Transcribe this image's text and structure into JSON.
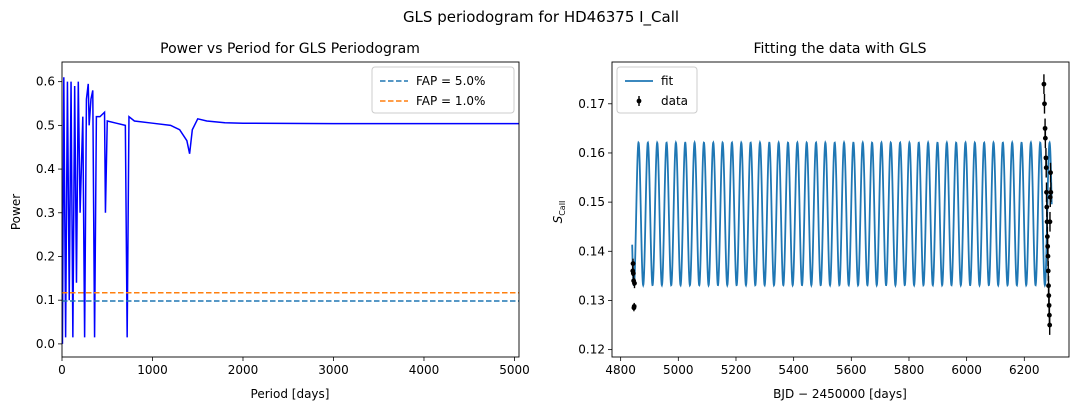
{
  "figure": {
    "suptitle": "GLS periodogram for HD46375 I_Call"
  },
  "chart_data": [
    {
      "type": "line",
      "title": "Power vs Period for GLS Periodogram",
      "xlabel": "Period [days]",
      "ylabel": "Power",
      "xlim": [
        0,
        5050
      ],
      "ylim": [
        -0.03,
        0.645
      ],
      "xticks": [
        0,
        1000,
        2000,
        3000,
        4000,
        5000
      ],
      "yticks": [
        0.0,
        0.1,
        0.2,
        0.3,
        0.4,
        0.5,
        0.6
      ],
      "xtick_labels": [
        "0",
        "1000",
        "2000",
        "3000",
        "4000",
        "5000"
      ],
      "ytick_labels": [
        "0.0",
        "0.1",
        "0.2",
        "0.3",
        "0.4",
        "0.5",
        "0.6"
      ],
      "grid": false,
      "legend_position": "top-right",
      "series": [
        {
          "name": "",
          "kind": "periodogram",
          "color": "#0000ff",
          "x": [
            5,
            20,
            40,
            60,
            80,
            100,
            120,
            140,
            160,
            180,
            200,
            230,
            250,
            270,
            290,
            300,
            320,
            340,
            360,
            380,
            420,
            470,
            480,
            500,
            600,
            700,
            720,
            740,
            800,
            1000,
            1200,
            1300,
            1380,
            1410,
            1440,
            1500,
            1600,
            1800,
            2000,
            3000,
            4000,
            5050
          ],
          "y": [
            0.0,
            0.61,
            0.015,
            0.6,
            0.1,
            0.6,
            0.015,
            0.59,
            0.14,
            0.6,
            0.3,
            0.52,
            0.015,
            0.56,
            0.595,
            0.5,
            0.56,
            0.58,
            0.015,
            0.52,
            0.52,
            0.53,
            0.3,
            0.51,
            0.505,
            0.5,
            0.015,
            0.52,
            0.51,
            0.505,
            0.5,
            0.49,
            0.465,
            0.435,
            0.49,
            0.515,
            0.51,
            0.506,
            0.505,
            0.504,
            0.504,
            0.504
          ]
        },
        {
          "name": "FAP =  5.0%",
          "kind": "hline",
          "value": 0.098,
          "color": "#1f77b4",
          "dash": true
        },
        {
          "name": "FAP =  1.0%",
          "kind": "hline",
          "value": 0.117,
          "color": "#ff7f0e",
          "dash": true
        }
      ]
    },
    {
      "type": "line",
      "title": "Fitting the data with GLS",
      "xlabel": "BJD − 2450000 [days]",
      "ylabel_main": "S",
      "ylabel_sub": "CaII",
      "xlim": [
        4770,
        6355
      ],
      "ylim": [
        0.1185,
        0.1785
      ],
      "xticks": [
        4800,
        5000,
        5200,
        5400,
        5600,
        5800,
        6000,
        6200
      ],
      "yticks": [
        0.12,
        0.13,
        0.14,
        0.15,
        0.16,
        0.17
      ],
      "xtick_labels": [
        "4800",
        "5000",
        "5200",
        "5400",
        "5600",
        "5800",
        "6000",
        "6200"
      ],
      "ytick_labels": [
        "0.12",
        "0.13",
        "0.14",
        "0.15",
        "0.16",
        "0.17"
      ],
      "grid": false,
      "legend_position": "top-left",
      "series": [
        {
          "name": "fit",
          "kind": "sinusoid",
          "color": "#1f77b4",
          "x_start": 4840,
          "x_end": 6295,
          "mean": 0.1476,
          "amplitude": 0.0145,
          "period": 32.4,
          "phase_ref": 4862
        },
        {
          "name": "data",
          "kind": "errorbar",
          "color": "#000000",
          "x": [
            4842,
            4843,
            4844,
            4845,
            4846,
            4847,
            4848,
            6268,
            6270,
            6272,
            6273,
            6275,
            6276,
            6277,
            6278,
            6279,
            6280,
            6281,
            6282,
            6283,
            6284,
            6285,
            6286,
            6287,
            6288,
            6289,
            6290,
            6291,
            6292
          ],
          "y": [
            0.136,
            0.1375,
            0.1355,
            0.134,
            0.1285,
            0.1288,
            0.1335,
            0.174,
            0.17,
            0.165,
            0.163,
            0.159,
            0.157,
            0.152,
            0.149,
            0.146,
            0.143,
            0.141,
            0.139,
            0.136,
            0.133,
            0.131,
            0.129,
            0.127,
            0.125,
            0.146,
            0.151,
            0.156,
            0.152
          ],
          "err": [
            0.001,
            0.001,
            0.001,
            0.001,
            0.0007,
            0.0007,
            0.001,
            0.002,
            0.002,
            0.002,
            0.002,
            0.002,
            0.002,
            0.002,
            0.002,
            0.002,
            0.002,
            0.002,
            0.002,
            0.002,
            0.002,
            0.002,
            0.002,
            0.002,
            0.002,
            0.002,
            0.002,
            0.002,
            0.002
          ]
        }
      ]
    }
  ]
}
